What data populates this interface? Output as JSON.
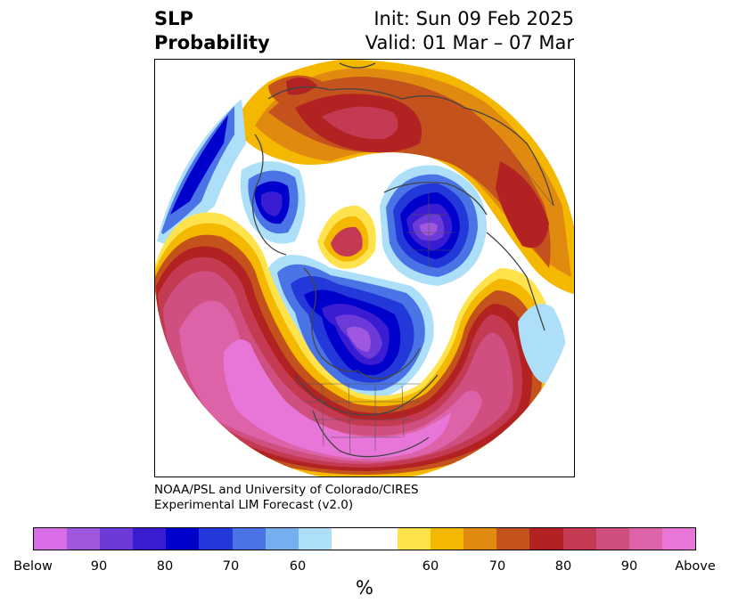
{
  "title": {
    "left_line1": "SLP",
    "left_line2": "Probability",
    "right_line1": "Init: Sun 09 Feb 2025",
    "right_line2": "Valid: 01 Mar – 07 Mar"
  },
  "credit": {
    "line1": "NOAA/PSL and University of Colorado/CIRES",
    "line2": "Experimental LIM Forecast (v2.0)"
  },
  "colorbar": {
    "colors": [
      "#d96de8",
      "#9f57e0",
      "#6b3ad8",
      "#3a1cd2",
      "#0000cc",
      "#2238d8",
      "#4a74e6",
      "#74b0f0",
      "#addff9",
      "#ffffff",
      "#ffffff",
      "#ffe34d",
      "#f5b800",
      "#e08a10",
      "#c4521c",
      "#b22222",
      "#c43a52",
      "#cf5080",
      "#dd62a8",
      "#e876d8"
    ],
    "tick_labels": [
      "Below",
      "90",
      "80",
      "70",
      "60",
      "60",
      "70",
      "80",
      "90",
      "Above"
    ],
    "unit": "%"
  },
  "map": {
    "projection": "north-polar-stereographic"
  }
}
